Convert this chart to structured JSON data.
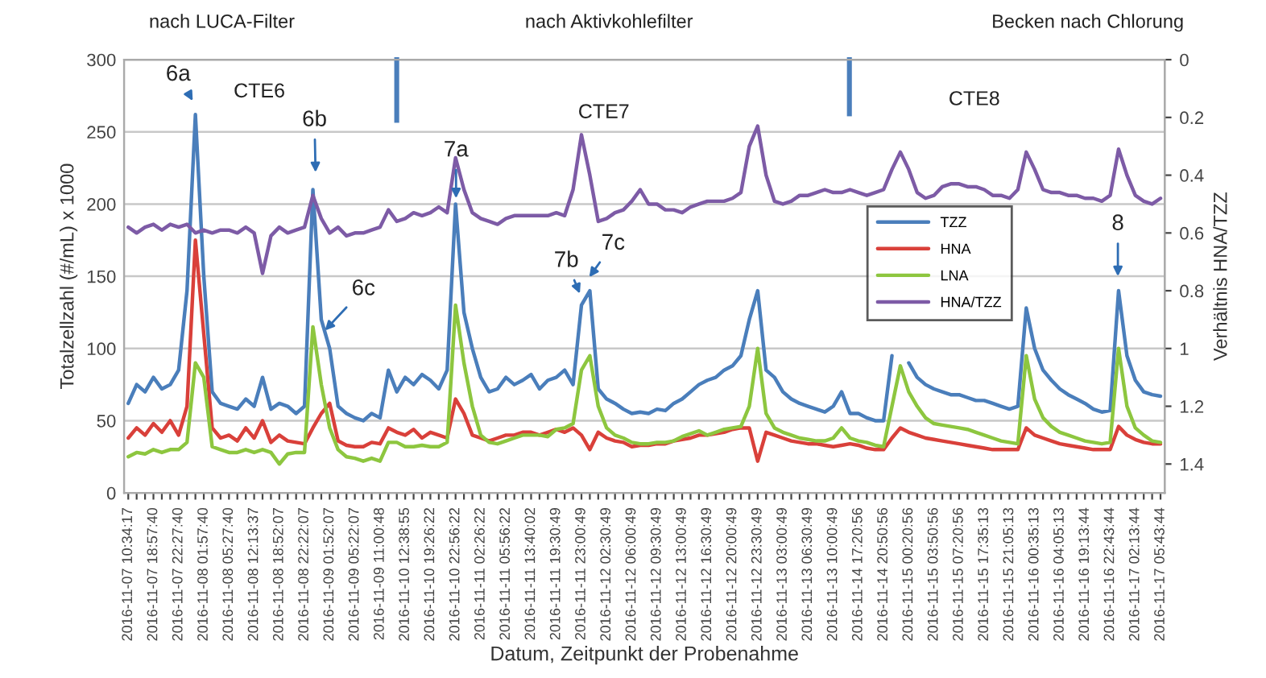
{
  "chart_data": {
    "type": "line",
    "xlabel": "Datum, Zeitpunkt der Probenahme",
    "ylabel": "Totalzellzahl (#/mL) x 1000",
    "y2label": "Verhältnis HNA/TZZ",
    "categories": [
      "2016-11-07 10:34:17",
      null,
      null,
      "2016-11-07 18:57:40",
      null,
      null,
      "2016-11-07 22:27:40",
      null,
      null,
      "2016-11-08 01:57:40",
      null,
      null,
      "2016-11-08 05:27:40",
      null,
      null,
      "2016-11-08 12:13:37",
      null,
      null,
      "2016-11-08 18:52:07",
      null,
      null,
      "2016-11-08 22:22:07",
      null,
      null,
      "2016-11-09 01:52:07",
      null,
      null,
      "2016-11-09 05:22:07",
      null,
      null,
      "2016-11-09 11:00:48",
      null,
      null,
      "2016-11-10 12:38:55",
      null,
      null,
      "2016-11-10 19:26:22",
      null,
      null,
      "2016-11-10 22:56:22",
      null,
      null,
      "2016-11-11 02:26:22",
      null,
      null,
      "2016-11-11 05:56:22",
      null,
      null,
      "2016-11-11 13:40:02",
      null,
      null,
      "2016-11-11 19:30:49",
      null,
      null,
      "2016-11-11 23:00:49",
      null,
      null,
      "2016-11-12 02:30:49",
      null,
      null,
      "2016-11-12 06:00:49",
      null,
      null,
      "2016-11-12 09:30:49",
      null,
      null,
      "2016-11-12 13:00:49",
      null,
      null,
      "2016-11-12 16:30:49",
      null,
      null,
      "2016-11-12 20:00:49",
      null,
      null,
      "2016-11-12 23:30:49",
      null,
      null,
      "2016-11-13 03:00:49",
      null,
      null,
      "2016-11-13 06:30:49",
      null,
      null,
      "2016-11-13 10:00:49",
      null,
      null,
      "2016-11-14 17:20:56",
      null,
      null,
      "2016-11-14 20:50:56",
      null,
      null,
      "2016-11-15 00:20:56",
      null,
      null,
      "2016-11-15 03:50:56",
      null,
      null,
      "2016-11-15 07:20:56",
      null,
      null,
      "2016-11-15 17:35:13",
      null,
      null,
      "2016-11-15 21:05:13",
      null,
      null,
      "2016-11-16 00:35:13",
      null,
      null,
      "2016-11-16 04:05:13",
      null,
      null,
      "2016-11-16 19:13:44",
      null,
      null,
      "2016-11-16 22:43:44",
      null,
      null,
      "2016-11-17 02:13:44",
      null,
      null,
      "2016-11-17 05:43:44"
    ],
    "series": [
      {
        "name": "TZZ",
        "color": "#4a7ebb",
        "values": [
          62,
          75,
          70,
          80,
          72,
          75,
          85,
          140,
          262,
          150,
          70,
          62,
          60,
          58,
          65,
          60,
          80,
          58,
          62,
          60,
          55,
          60,
          210,
          120,
          100,
          60,
          55,
          52,
          50,
          55,
          52,
          85,
          70,
          80,
          75,
          82,
          78,
          72,
          85,
          200,
          125,
          100,
          80,
          70,
          72,
          80,
          75,
          78,
          82,
          72,
          78,
          80,
          85,
          75,
          130,
          140,
          72,
          65,
          62,
          58,
          55,
          56,
          55,
          58,
          57,
          62,
          65,
          70,
          75,
          78,
          80,
          85,
          88,
          95,
          120,
          140,
          85,
          80,
          70,
          65,
          62,
          60,
          58,
          56,
          60,
          70,
          55,
          55,
          52,
          50,
          50,
          95,
          null,
          90,
          80,
          75,
          72,
          70,
          68,
          68,
          66,
          64,
          64,
          62,
          60,
          58,
          60,
          128,
          100,
          85,
          78,
          72,
          68,
          65,
          62,
          58,
          56,
          57,
          140,
          95,
          78,
          70,
          68,
          67
        ]
      },
      {
        "name": "HNA",
        "color": "#d9403a",
        "values": [
          38,
          45,
          40,
          48,
          42,
          50,
          40,
          60,
          175,
          110,
          45,
          38,
          40,
          36,
          45,
          38,
          50,
          35,
          40,
          36,
          35,
          34,
          45,
          55,
          62,
          36,
          33,
          32,
          32,
          35,
          34,
          45,
          42,
          40,
          44,
          38,
          42,
          40,
          38,
          65,
          55,
          40,
          38,
          36,
          38,
          40,
          40,
          42,
          42,
          40,
          42,
          44,
          42,
          45,
          40,
          30,
          42,
          38,
          36,
          35,
          32,
          33,
          33,
          34,
          34,
          36,
          37,
          38,
          40,
          40,
          41,
          42,
          44,
          45,
          45,
          22,
          42,
          40,
          38,
          36,
          35,
          34,
          34,
          33,
          32,
          33,
          34,
          33,
          31,
          30,
          30,
          38,
          45,
          42,
          40,
          38,
          37,
          36,
          35,
          34,
          33,
          32,
          31,
          30,
          30,
          30,
          30,
          45,
          40,
          38,
          36,
          34,
          33,
          32,
          31,
          30,
          30,
          30,
          46,
          40,
          37,
          35,
          34,
          34
        ]
      },
      {
        "name": "LNA",
        "color": "#8dc63f",
        "values": [
          25,
          28,
          27,
          30,
          28,
          30,
          30,
          35,
          90,
          80,
          32,
          30,
          28,
          28,
          30,
          28,
          30,
          28,
          20,
          27,
          28,
          28,
          115,
          75,
          45,
          30,
          25,
          24,
          22,
          24,
          22,
          35,
          35,
          32,
          32,
          33,
          32,
          32,
          35,
          130,
          90,
          60,
          40,
          35,
          34,
          36,
          38,
          40,
          40,
          40,
          39,
          44,
          45,
          48,
          85,
          95,
          60,
          45,
          40,
          38,
          35,
          34,
          34,
          35,
          35,
          36,
          39,
          41,
          43,
          40,
          42,
          44,
          45,
          46,
          60,
          100,
          55,
          45,
          42,
          40,
          38,
          37,
          36,
          36,
          38,
          45,
          38,
          36,
          35,
          33,
          32,
          60,
          88,
          70,
          60,
          52,
          48,
          47,
          46,
          45,
          44,
          42,
          40,
          38,
          36,
          35,
          34,
          95,
          65,
          52,
          46,
          42,
          40,
          38,
          36,
          35,
          34,
          35,
          100,
          60,
          45,
          40,
          36,
          35
        ]
      },
      {
        "name": "HNA/TZZ",
        "color": "#7d5ba6",
        "axis": "y2",
        "values": [
          0.58,
          0.6,
          0.58,
          0.57,
          0.59,
          0.57,
          0.58,
          0.57,
          0.6,
          0.59,
          0.6,
          0.59,
          0.59,
          0.6,
          0.58,
          0.6,
          0.74,
          0.61,
          0.58,
          0.6,
          0.59,
          0.58,
          0.47,
          0.55,
          0.6,
          0.58,
          0.61,
          0.6,
          0.6,
          0.59,
          0.58,
          0.52,
          0.56,
          0.55,
          0.53,
          0.54,
          0.53,
          0.51,
          0.53,
          0.34,
          0.45,
          0.53,
          0.55,
          0.56,
          0.57,
          0.55,
          0.54,
          0.54,
          0.54,
          0.54,
          0.54,
          0.53,
          0.54,
          0.45,
          0.26,
          0.4,
          0.56,
          0.55,
          0.53,
          0.52,
          0.49,
          0.45,
          0.5,
          0.5,
          0.52,
          0.52,
          0.53,
          0.51,
          0.5,
          0.49,
          0.49,
          0.49,
          0.48,
          0.46,
          0.3,
          0.23,
          0.4,
          0.49,
          0.5,
          0.49,
          0.47,
          0.47,
          0.46,
          0.45,
          0.46,
          0.46,
          0.45,
          0.46,
          0.47,
          0.46,
          0.45,
          0.38,
          0.32,
          0.38,
          0.46,
          0.48,
          0.47,
          0.44,
          0.43,
          0.43,
          0.44,
          0.44,
          0.45,
          0.47,
          0.47,
          0.48,
          0.45,
          0.32,
          0.38,
          0.45,
          0.46,
          0.46,
          0.47,
          0.47,
          0.48,
          0.48,
          0.49,
          0.47,
          0.31,
          0.4,
          0.47,
          0.49,
          0.5,
          0.48
        ]
      }
    ],
    "ylim": [
      0,
      300
    ],
    "yticks": [
      0,
      50,
      100,
      150,
      200,
      250,
      300
    ],
    "y2lim": [
      1.5,
      0
    ],
    "y2ticks": [
      0,
      0.2,
      0.4,
      0.6,
      0.8,
      1,
      1.2,
      1.4
    ],
    "grid": "y",
    "legend": "right",
    "annotations": [
      "nach LUCA-Filter",
      "nach Aktivkohlefilter",
      "Becken nach Chlorung",
      "CTE6",
      "CTE7",
      "CTE8",
      "6a",
      "6b",
      "6c",
      "7a",
      "7b",
      "7c",
      "8"
    ]
  }
}
